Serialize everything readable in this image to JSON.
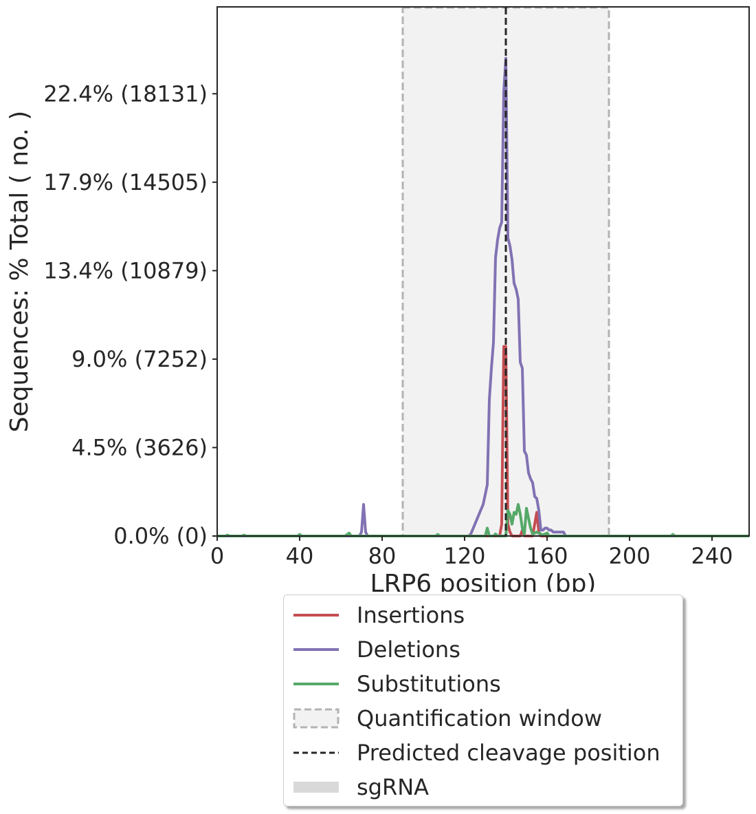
{
  "chart_data": {
    "type": "line",
    "xlabel": "LRP6 position (bp)",
    "ylabel": "Sequences: % Total ( no. )",
    "xlim": [
      0,
      258
    ],
    "ylim": [
      0,
      26.8
    ],
    "x_ticks": [
      0,
      40,
      80,
      120,
      160,
      200,
      240
    ],
    "x_tick_labels": [
      "0",
      "40",
      "80",
      "120",
      "160",
      "200",
      "240"
    ],
    "y_ticks": [
      0,
      4.48,
      8.96,
      13.44,
      17.92,
      22.4
    ],
    "y_tick_labels": [
      "0.0% (0)",
      "4.5% (3626)",
      "9.0% (7252)",
      "13.4% (10879)",
      "17.9% (14505)",
      "22.4% (18131)"
    ],
    "quantification_window": [
      90,
      190
    ],
    "predicted_cleavage_position": 140,
    "grid": false,
    "legend_placement": "below",
    "series": [
      {
        "name": "Insertions",
        "color": "#c44e52",
        "points": [
          [
            0,
            0
          ],
          [
            137,
            0
          ],
          [
            138,
            0.6
          ],
          [
            139,
            9.6
          ],
          [
            140,
            9.6
          ],
          [
            141,
            0.6
          ],
          [
            142,
            0.2
          ],
          [
            143,
            0
          ],
          [
            147,
            0
          ],
          [
            148,
            0.3
          ],
          [
            149,
            0
          ],
          [
            153,
            0
          ],
          [
            155,
            1.2
          ],
          [
            156,
            0.2
          ],
          [
            157,
            0
          ],
          [
            258,
            0
          ]
        ]
      },
      {
        "name": "Deletions",
        "color": "#8172b3",
        "points": [
          [
            0,
            0
          ],
          [
            69,
            0
          ],
          [
            70,
            0.2
          ],
          [
            71,
            1.6
          ],
          [
            72,
            0.2
          ],
          [
            73,
            0
          ],
          [
            122,
            0
          ],
          [
            123,
            0.1
          ],
          [
            125,
            0.6
          ],
          [
            127,
            1.1
          ],
          [
            129,
            1.6
          ],
          [
            131,
            2.6
          ],
          [
            132,
            6.9
          ],
          [
            133,
            8.5
          ],
          [
            134,
            9.8
          ],
          [
            135,
            14.1
          ],
          [
            136,
            15.0
          ],
          [
            137,
            15.6
          ],
          [
            138,
            15.9
          ],
          [
            139,
            22.5
          ],
          [
            140,
            24.2
          ],
          [
            141,
            15.1
          ],
          [
            142,
            14.7
          ],
          [
            143,
            14.0
          ],
          [
            144,
            12.8
          ],
          [
            145,
            12.5
          ],
          [
            146,
            12.0
          ],
          [
            147,
            8.8
          ],
          [
            148,
            8.5
          ],
          [
            149,
            4.3
          ],
          [
            150,
            4.1
          ],
          [
            151,
            3.2
          ],
          [
            152,
            2.9
          ],
          [
            153,
            2.7
          ],
          [
            154,
            2.0
          ],
          [
            155,
            1.9
          ],
          [
            156,
            1.3
          ],
          [
            157,
            0.3
          ],
          [
            158,
            0.3
          ],
          [
            159,
            0.4
          ],
          [
            160,
            0.4
          ],
          [
            161,
            0.3
          ],
          [
            162,
            0.3
          ],
          [
            163,
            0.2
          ],
          [
            168,
            0.2
          ],
          [
            169,
            0
          ],
          [
            258,
            0
          ]
        ]
      },
      {
        "name": "Substitutions",
        "color": "#55a868",
        "points": [
          [
            0,
            0
          ],
          [
            4,
            0
          ],
          [
            5,
            0.05
          ],
          [
            6,
            0
          ],
          [
            12,
            0
          ],
          [
            13,
            0.05
          ],
          [
            14,
            0
          ],
          [
            39,
            0
          ],
          [
            40,
            0.08
          ],
          [
            41,
            0
          ],
          [
            62,
            0
          ],
          [
            64,
            0.15
          ],
          [
            65,
            0
          ],
          [
            106,
            0
          ],
          [
            107,
            0.08
          ],
          [
            108,
            0
          ],
          [
            130,
            0
          ],
          [
            131,
            0.4
          ],
          [
            132,
            0
          ],
          [
            134,
            0
          ],
          [
            135,
            0.1
          ],
          [
            136,
            0
          ],
          [
            140,
            0
          ],
          [
            141,
            1.3
          ],
          [
            142,
            1.1
          ],
          [
            143,
            0.6
          ],
          [
            144,
            1.2
          ],
          [
            145,
            1.1
          ],
          [
            146,
            1.6
          ],
          [
            147,
            1.1
          ],
          [
            148,
            0.4
          ],
          [
            149,
            0.1
          ],
          [
            150,
            1.4
          ],
          [
            151,
            0.9
          ],
          [
            152,
            0.4
          ],
          [
            153,
            0.1
          ],
          [
            155,
            0.2
          ],
          [
            158,
            0.05
          ],
          [
            160,
            0.15
          ],
          [
            161,
            0
          ],
          [
            220,
            0
          ],
          [
            221,
            0.08
          ],
          [
            222,
            0
          ],
          [
            258,
            0
          ]
        ]
      }
    ],
    "legend_entries": [
      {
        "label": "Insertions",
        "swatch": "line",
        "color": "#c44e52"
      },
      {
        "label": "Deletions",
        "swatch": "line",
        "color": "#8172b3"
      },
      {
        "label": "Substitutions",
        "swatch": "line",
        "color": "#55a868"
      },
      {
        "label": "Quantification window",
        "swatch": "dashed-box",
        "color": "#b3b3b3"
      },
      {
        "label": "Predicted cleavage position",
        "swatch": "dashed-line",
        "color": "#262626"
      },
      {
        "label": "sgRNA",
        "swatch": "bar",
        "color": "#d9d9d9"
      }
    ]
  }
}
